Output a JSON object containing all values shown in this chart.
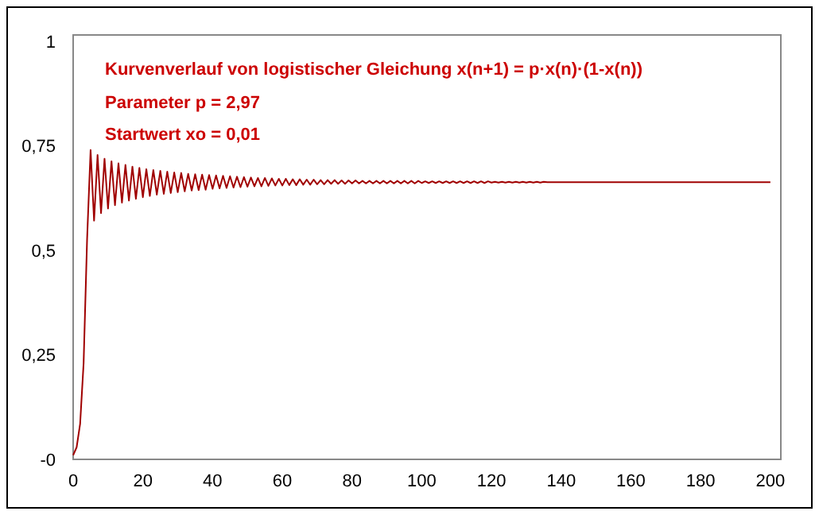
{
  "chart_data": {
    "type": "line",
    "title": "Kurvenverlauf von logistischer Gleichung x(n+1) = p·x(n)·(1-x(n))",
    "annotations": [
      "Parameter p = 2,97",
      "Startwert xo = 0,01"
    ],
    "x": [
      0,
      1,
      2,
      3,
      4,
      5,
      6,
      7,
      8,
      9,
      10,
      11,
      12,
      13,
      14,
      15,
      16,
      17,
      18,
      19,
      20,
      21,
      22,
      23,
      24,
      25,
      26,
      27,
      28,
      29,
      30,
      31,
      32,
      33,
      34,
      35,
      36,
      37,
      38,
      39,
      40,
      41,
      42,
      43,
      44,
      45,
      46,
      47,
      48,
      49,
      50,
      51,
      52,
      53,
      54,
      55,
      56,
      57,
      58,
      59,
      60,
      61,
      62,
      63,
      64,
      65,
      66,
      67,
      68,
      69,
      70,
      71,
      72,
      73,
      74,
      75,
      76,
      77,
      78,
      79,
      80,
      81,
      82,
      83,
      84,
      85,
      86,
      87,
      88,
      89,
      90,
      91,
      92,
      93,
      94,
      95,
      96,
      97,
      98,
      99,
      100,
      101,
      102,
      103,
      104,
      105,
      106,
      107,
      108,
      109,
      110,
      111,
      112,
      113,
      114,
      115,
      116,
      117,
      118,
      119,
      120,
      121,
      122,
      123,
      124,
      125,
      126,
      127,
      128,
      129,
      130,
      131,
      132,
      133,
      134,
      135,
      136,
      137,
      138,
      139,
      140,
      141,
      142,
      143,
      144,
      145,
      146,
      147,
      148,
      149,
      150,
      151,
      152,
      153,
      154,
      155,
      156,
      157,
      158,
      159,
      160,
      161,
      162,
      163,
      164,
      165,
      166,
      167,
      168,
      169,
      170,
      171,
      172,
      173,
      174,
      175,
      176,
      177,
      178,
      179,
      180,
      181,
      182,
      183,
      184,
      185,
      186,
      187,
      188,
      189,
      190,
      191,
      192,
      193,
      194,
      195,
      196,
      197,
      198,
      199,
      200
    ],
    "series": [
      {
        "color": "#a00000",
        "values": [
          0.01,
          0.029,
          0.085,
          0.23,
          0.527,
          0.74,
          0.571,
          0.728,
          0.589,
          0.719,
          0.6,
          0.713,
          0.608,
          0.708,
          0.614,
          0.704,
          0.619,
          0.7,
          0.623,
          0.697,
          0.627,
          0.694,
          0.63,
          0.692,
          0.633,
          0.69,
          0.635,
          0.688,
          0.637,
          0.686,
          0.639,
          0.685,
          0.641,
          0.683,
          0.643,
          0.682,
          0.644,
          0.681,
          0.645,
          0.68,
          0.647,
          0.679,
          0.648,
          0.678,
          0.649,
          0.677,
          0.65,
          0.676,
          0.651,
          0.675,
          0.652,
          0.674,
          0.653,
          0.673,
          0.653,
          0.673,
          0.654,
          0.672,
          0.655,
          0.671,
          0.655,
          0.671,
          0.656,
          0.67,
          0.656,
          0.67,
          0.657,
          0.669,
          0.657,
          0.669,
          0.658,
          0.668,
          0.658,
          0.668,
          0.659,
          0.668,
          0.659,
          0.667,
          0.659,
          0.667,
          0.66,
          0.667,
          0.66,
          0.666,
          0.66,
          0.666,
          0.66,
          0.666,
          0.66,
          0.666,
          0.66,
          0.666,
          0.66,
          0.666,
          0.66,
          0.666,
          0.66,
          0.666,
          0.66,
          0.666,
          0.661,
          0.665,
          0.661,
          0.665,
          0.661,
          0.665,
          0.661,
          0.665,
          0.661,
          0.665,
          0.661,
          0.665,
          0.661,
          0.665,
          0.661,
          0.665,
          0.661,
          0.665,
          0.661,
          0.665,
          0.662,
          0.664,
          0.662,
          0.664,
          0.662,
          0.664,
          0.662,
          0.664,
          0.662,
          0.664,
          0.662,
          0.664,
          0.662,
          0.664,
          0.662,
          0.664,
          0.663,
          0.663,
          0.663,
          0.663,
          0.663,
          0.663,
          0.663,
          0.663,
          0.663,
          0.663,
          0.663,
          0.663,
          0.663,
          0.663,
          0.663,
          0.663,
          0.663,
          0.663,
          0.663,
          0.663,
          0.663,
          0.663,
          0.663,
          0.663,
          0.663,
          0.663,
          0.663,
          0.663,
          0.663,
          0.663,
          0.663,
          0.663,
          0.663,
          0.663,
          0.663,
          0.663,
          0.663,
          0.663,
          0.663,
          0.663,
          0.663,
          0.663,
          0.663,
          0.663,
          0.663,
          0.663,
          0.663,
          0.663,
          0.663,
          0.663,
          0.663,
          0.663,
          0.663,
          0.663,
          0.663,
          0.663,
          0.663,
          0.663,
          0.663,
          0.663,
          0.663,
          0.663,
          0.663,
          0.663,
          0.663
        ]
      }
    ],
    "xlim": [
      0,
      203
    ],
    "ylim": [
      0,
      1.015
    ],
    "xticks": [
      0,
      20,
      40,
      60,
      80,
      100,
      120,
      140,
      160,
      180,
      200
    ],
    "yticks": [
      {
        "value": 0,
        "label": "-0"
      },
      {
        "value": 0.25,
        "label": "0,25"
      },
      {
        "value": 0.5,
        "label": "0,5"
      },
      {
        "value": 0.75,
        "label": "0,75"
      },
      {
        "value": 1,
        "label": "1"
      }
    ],
    "grid": false
  }
}
